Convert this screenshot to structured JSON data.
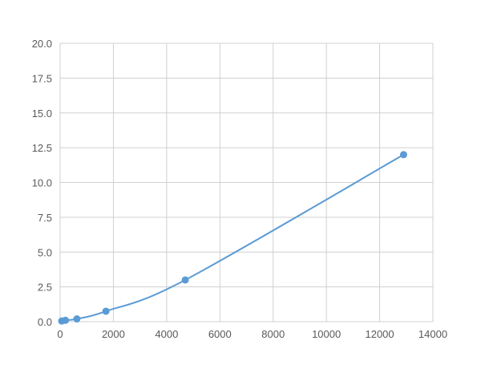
{
  "chart_data": {
    "type": "scatter",
    "title": "",
    "xlabel": "",
    "ylabel": "",
    "xlim": [
      0,
      14000
    ],
    "ylim": [
      0,
      20
    ],
    "x_ticks": [
      0,
      2000,
      4000,
      6000,
      8000,
      10000,
      12000,
      14000
    ],
    "y_ticks": [
      "0.0",
      "2.5",
      "5.0",
      "7.5",
      "10.0",
      "12.5",
      "15.0",
      "17.5",
      "20.0"
    ],
    "grid": true,
    "smooth_line": true,
    "markers": true,
    "series": [
      {
        "color": "#5b9bd5",
        "x": [
          60,
          200,
          630,
          1720,
          4700,
          12900
        ],
        "y": [
          0.05,
          0.1,
          0.2,
          0.75,
          3.0,
          12.0
        ]
      }
    ]
  }
}
